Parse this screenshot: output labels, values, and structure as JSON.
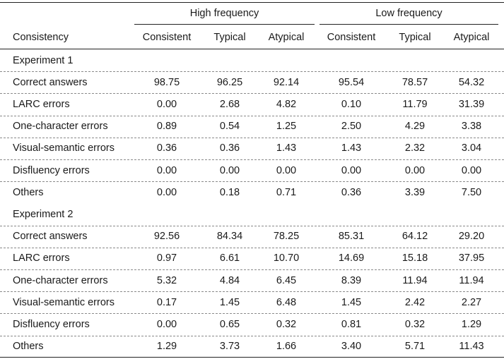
{
  "header": {
    "groups": [
      "High frequency",
      "Low frequency"
    ],
    "first_column": "Consistency",
    "columns": [
      "Consistent",
      "Typical",
      "Atypical",
      "Consistent",
      "Typical",
      "Atypical"
    ]
  },
  "sections": [
    {
      "title": "Experiment 1",
      "rows": [
        {
          "label": "Correct answers",
          "values": [
            "98.75",
            "96.25",
            "92.14",
            "95.54",
            "78.57",
            "54.32"
          ]
        },
        {
          "label": "LARC errors",
          "values": [
            "0.00",
            "2.68",
            "4.82",
            "0.10",
            "11.79",
            "31.39"
          ]
        },
        {
          "label": "One-character errors",
          "values": [
            "0.89",
            "0.54",
            "1.25",
            "2.50",
            "4.29",
            "3.38"
          ]
        },
        {
          "label": "Visual-semantic errors",
          "values": [
            "0.36",
            "0.36",
            "1.43",
            "1.43",
            "2.32",
            "3.04"
          ]
        },
        {
          "label": "Disfluency errors",
          "values": [
            "0.00",
            "0.00",
            "0.00",
            "0.00",
            "0.00",
            "0.00"
          ]
        },
        {
          "label": "Others",
          "values": [
            "0.00",
            "0.18",
            "0.71",
            "0.36",
            "3.39",
            "7.50"
          ]
        }
      ]
    },
    {
      "title": "Experiment 2",
      "rows": [
        {
          "label": "Correct answers",
          "values": [
            "92.56",
            "84.34",
            "78.25",
            "85.31",
            "64.12",
            "29.20"
          ]
        },
        {
          "label": "LARC errors",
          "values": [
            "0.97",
            "6.61",
            "10.70",
            "14.69",
            "15.18",
            "37.95"
          ]
        },
        {
          "label": "One-character errors",
          "values": [
            "5.32",
            "4.84",
            "6.45",
            "8.39",
            "11.94",
            "11.94"
          ]
        },
        {
          "label": "Visual-semantic errors",
          "values": [
            "0.17",
            "1.45",
            "6.48",
            "1.45",
            "2.42",
            "2.27"
          ]
        },
        {
          "label": "Disfluency errors",
          "values": [
            "0.00",
            "0.65",
            "0.32",
            "0.81",
            "0.32",
            "1.29"
          ]
        },
        {
          "label": "Others",
          "values": [
            "1.29",
            "3.73",
            "1.66",
            "3.40",
            "5.71",
            "11.43"
          ]
        }
      ]
    }
  ]
}
